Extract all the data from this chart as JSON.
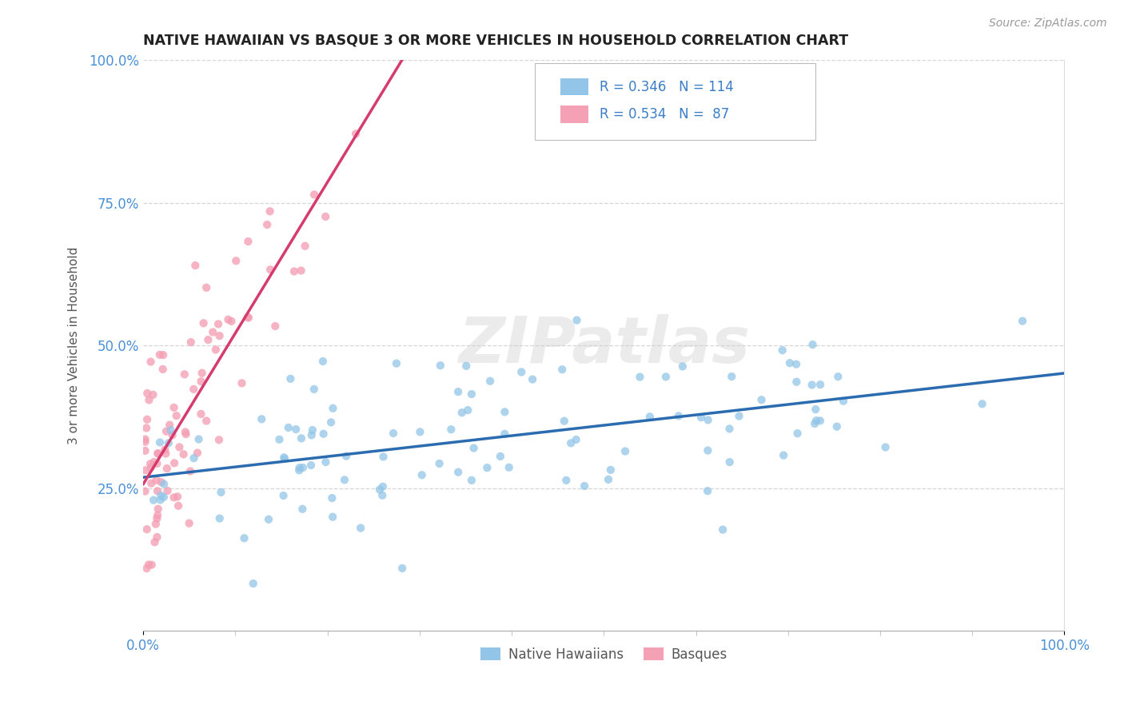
{
  "title": "NATIVE HAWAIIAN VS BASQUE 3 OR MORE VEHICLES IN HOUSEHOLD CORRELATION CHART",
  "source": "Source: ZipAtlas.com",
  "ylabel": "3 or more Vehicles in Household",
  "blue_color": "#92c5e8",
  "pink_color": "#f4a0b5",
  "blue_line_color": "#2b6cb0",
  "pink_line_color": "#d63b6e",
  "legend_text_color": "#3a7ec8",
  "background_color": "#ffffff",
  "grid_color": "#cccccc",
  "title_color": "#222222",
  "tick_label_color": "#4a90d9",
  "watermark": "ZIPatlas",
  "r_blue": 0.346,
  "n_blue": 114,
  "r_pink": 0.534,
  "n_pink": 87
}
